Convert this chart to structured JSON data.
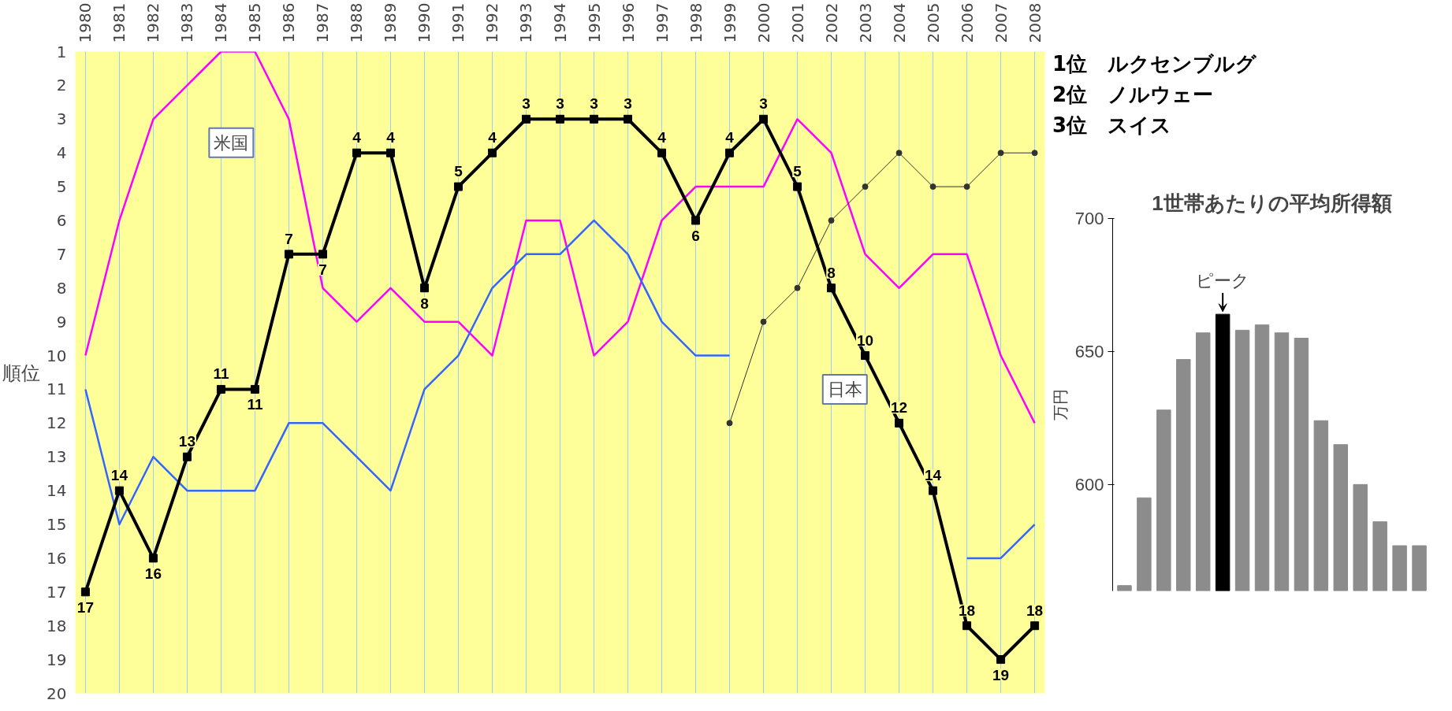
{
  "chart_data": [
    {
      "type": "line",
      "ylabel": "順位",
      "categories": [
        "1980",
        "1981",
        "1982",
        "1983",
        "1984",
        "1985",
        "1986",
        "1987",
        "1988",
        "1989",
        "1990",
        "1991",
        "1992",
        "1993",
        "1994",
        "1995",
        "1996",
        "1997",
        "1998",
        "1999",
        "2000",
        "2001",
        "2002",
        "2003",
        "2004",
        "2005",
        "2006",
        "2007",
        "2008"
      ],
      "series": [
        {
          "name": "米国",
          "color": "#ff00ff",
          "marker": "none",
          "values": [
            10,
            6,
            3,
            2,
            1,
            1,
            3,
            8,
            9,
            8,
            9,
            9,
            10,
            6,
            6,
            10,
            9,
            6,
            5,
            5,
            5,
            3,
            4,
            7,
            8,
            7,
            7,
            10,
            12
          ]
        },
        {
          "color": "#3366ff",
          "marker": "none",
          "values": [
            11,
            15,
            13,
            14,
            14,
            14,
            12,
            12,
            13,
            14,
            11,
            10,
            8,
            7,
            7,
            6,
            7,
            9,
            10,
            10,
            null,
            null,
            null,
            null,
            null,
            null,
            16,
            16,
            15
          ]
        },
        {
          "color": "#333333",
          "marker": "circle",
          "values": [
            null,
            null,
            null,
            null,
            null,
            null,
            null,
            null,
            null,
            null,
            null,
            null,
            null,
            null,
            null,
            null,
            null,
            null,
            null,
            12,
            9,
            8,
            6,
            5,
            4,
            5,
            5,
            4,
            4
          ]
        },
        {
          "name": "日本",
          "color": "#000000",
          "marker": "square",
          "values": [
            17,
            14,
            16,
            13,
            11,
            11,
            7,
            7,
            4,
            4,
            8,
            5,
            4,
            3,
            3,
            3,
            3,
            4,
            6,
            4,
            3,
            5,
            8,
            10,
            12,
            14,
            18,
            19,
            18
          ],
          "value_labels": [
            "17",
            "14",
            "16",
            "13",
            "11",
            "11",
            "7",
            "7",
            "4",
            "4",
            "8",
            "5",
            "4",
            "3",
            "3",
            "3",
            "3",
            "4",
            "6",
            "4",
            "3",
            "5",
            "8",
            "10",
            "12",
            "14",
            "18",
            "19",
            "18"
          ]
        }
      ],
      "ylim": [
        20,
        1
      ],
      "yticks": [
        1,
        2,
        3,
        4,
        5,
        6,
        7,
        8,
        9,
        10,
        11,
        12,
        13,
        14,
        15,
        16,
        17,
        18,
        19,
        20
      ],
      "grid": "x",
      "annotations": [
        "1位　ルクセンブルグ",
        "2位　ノルウェー",
        "3位　スイス"
      ]
    },
    {
      "type": "bar",
      "title": "1世帯あたりの平均所得額",
      "ylabel": "万円",
      "categories": [
        null,
        null,
        null,
        null,
        null,
        null,
        null,
        null,
        null,
        null,
        null,
        null,
        null,
        null,
        null,
        null
      ],
      "values": [
        562,
        595,
        628,
        647,
        657,
        664,
        658,
        660,
        657,
        655,
        624,
        615,
        600,
        586,
        577,
        577
      ],
      "colors": [
        "#8c8c8c",
        "#8c8c8c",
        "#8c8c8c",
        "#8c8c8c",
        "#8c8c8c",
        "#000000",
        "#8c8c8c",
        "#8c8c8c",
        "#8c8c8c",
        "#8c8c8c",
        "#8c8c8c",
        "#8c8c8c",
        "#8c8c8c",
        "#8c8c8c",
        "#8c8c8c",
        "#8c8c8c"
      ],
      "ylim": [
        560,
        700
      ],
      "yticks": [
        600,
        650,
        700
      ],
      "grid": false,
      "annotations": [
        "ピーク"
      ]
    }
  ]
}
